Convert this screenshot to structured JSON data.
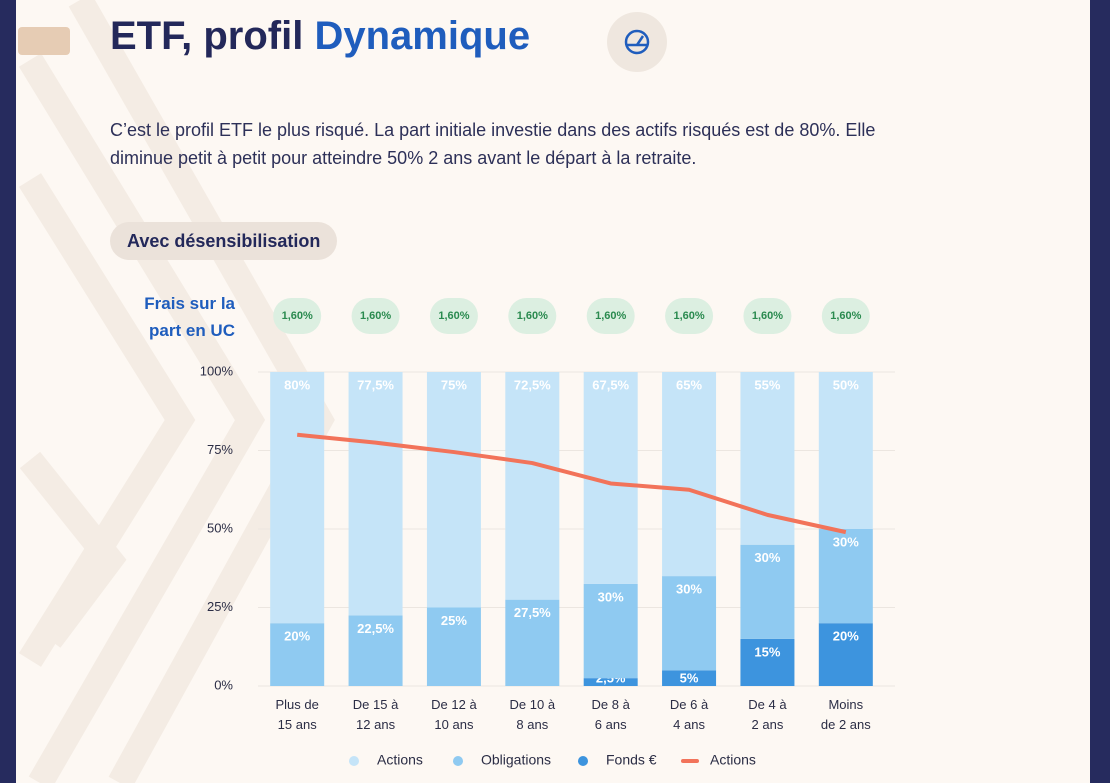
{
  "header": {
    "title_start": "ETF, profil",
    "title_highlight": "Dynamique",
    "description": "C’est le profil ETF le plus risqué. La part initiale investie dans des actifs risqués est de 80%. Elle diminue petit à petit pour atteindre 50% 2 ans avant le départ à la retraite.",
    "tag": "Avec désensibilisation"
  },
  "fees": {
    "label": "Frais sur la part en UC",
    "values": [
      "1,60%",
      "1,60%",
      "1,60%",
      "1,60%",
      "1,60%",
      "1,60%",
      "1,60%",
      "1,60%"
    ]
  },
  "chart_data": {
    "type": "bar",
    "stacked": true,
    "categories": [
      "Plus de\n15 ans",
      "De 15 à\n12 ans",
      "De 12 à\n10 ans",
      "De 10 à\n8 ans",
      "De 8 à\n6 ans",
      "De 6 à\n4 ans",
      "De 4 à\n2 ans",
      "Moins\nde 2 ans"
    ],
    "ylim": [
      0,
      100
    ],
    "yticks": [
      {
        "value": 0,
        "label": "0%"
      },
      {
        "value": 25,
        "label": "25%"
      },
      {
        "value": 50,
        "label": "50%"
      },
      {
        "value": 75,
        "label": "75%"
      },
      {
        "value": 100,
        "label": "100%"
      }
    ],
    "grid": true,
    "series": [
      {
        "name": "Actions",
        "color": "#c5e4f8",
        "values": [
          80,
          77.5,
          75,
          72.5,
          67.5,
          65,
          55,
          50
        ],
        "value_labels": [
          "80%",
          "77,5%",
          "75%",
          "72,5%",
          "67,5%",
          "65%",
          "55%",
          "50%"
        ]
      },
      {
        "name": "Obligations",
        "color": "#8fcaf1",
        "values": [
          20,
          22.5,
          25,
          27.5,
          30,
          30,
          30,
          30
        ],
        "value_labels": [
          "20%",
          "22,5%",
          "25%",
          "27,5%",
          "30%",
          "30%",
          "30%",
          "30%"
        ]
      },
      {
        "name": "Fonds €",
        "color": "#3d94de",
        "values": [
          null,
          null,
          null,
          null,
          2.5,
          5,
          15,
          20
        ],
        "value_labels": [
          null,
          null,
          null,
          null,
          "2,5%",
          "5%",
          "15%",
          "20%"
        ]
      },
      {
        "name": "Actions",
        "type": "line",
        "color": "#f2735a",
        "values": [
          80,
          77.5,
          74.5,
          71,
          64.5,
          62.5,
          54.5,
          49
        ]
      }
    ]
  }
}
